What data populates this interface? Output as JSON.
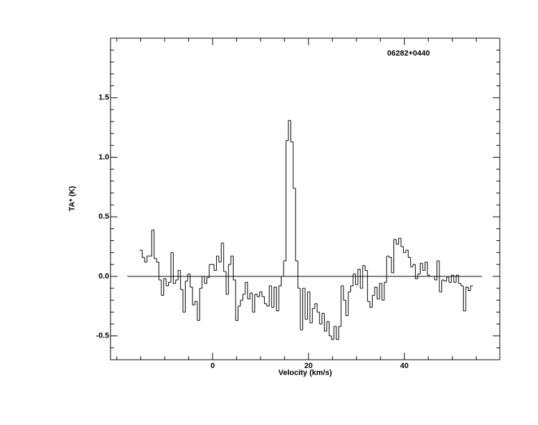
{
  "chart_data": {
    "type": "step",
    "title": "06282+0440",
    "xlabel": "Velocity (km/s)",
    "ylabel": "TA* (K)",
    "x": [
      -14.95,
      -14.45,
      -13.95,
      -13.45,
      -12.95,
      -12.45,
      -11.95,
      -11.45,
      -10.95,
      -10.45,
      -9.95,
      -9.45,
      -8.95,
      -8.45,
      -7.95,
      -7.45,
      -6.95,
      -6.45,
      -5.95,
      -5.45,
      -4.95,
      -4.45,
      -3.95,
      -3.45,
      -2.95,
      -2.45,
      -1.95,
      -1.45,
      -0.95,
      -0.45,
      0.05,
      0.55,
      1.05,
      1.55,
      2.05,
      2.55,
      3.05,
      3.55,
      4.05,
      4.55,
      5.05,
      5.55,
      6.05,
      6.55,
      7.05,
      7.55,
      8.05,
      8.55,
      9.05,
      9.55,
      10.05,
      10.55,
      11.05,
      11.55,
      12.05,
      12.55,
      13.05,
      13.55,
      14.05,
      14.55,
      15.05,
      15.55,
      16.05,
      16.55,
      17.05,
      17.55,
      18.05,
      18.55,
      19.05,
      19.55,
      20.05,
      20.55,
      21.05,
      21.55,
      22.05,
      22.55,
      23.05,
      23.55,
      24.05,
      24.55,
      25.05,
      25.55,
      26.05,
      26.55,
      27.05,
      27.55,
      28.05,
      28.55,
      29.05,
      29.55,
      30.05,
      30.55,
      31.05,
      31.55,
      32.05,
      32.55,
      33.05,
      33.55,
      34.05,
      34.55,
      35.05,
      35.55,
      36.05,
      36.55,
      37.05,
      37.55,
      38.05,
      38.55,
      39.05,
      39.55,
      40.05,
      40.55,
      41.05,
      41.55,
      42.05,
      42.55,
      43.05,
      43.55,
      44.05,
      44.55,
      45.05,
      45.55,
      46.05,
      46.55,
      47.05,
      47.55,
      48.05,
      48.55,
      49.05,
      49.55,
      50.05,
      50.55,
      51.05,
      51.55,
      52.05,
      52.55,
      53.05,
      53.55,
      54.05
    ],
    "values": [
      0.22,
      0.16,
      0.12,
      0.17,
      0.17,
      0.39,
      0.15,
      0.12,
      -0.03,
      -0.16,
      -0.02,
      -0.08,
      -0.05,
      0.2,
      -0.06,
      -0.03,
      0.05,
      -0.11,
      -0.3,
      -0.04,
      0.02,
      -0.09,
      -0.24,
      -0.21,
      -0.37,
      -0.1,
      0.0,
      -0.06,
      -0.01,
      0.1,
      0.1,
      0.05,
      0.17,
      0.12,
      0.28,
      0.04,
      -0.15,
      0.1,
      0.17,
      -0.03,
      -0.37,
      -0.25,
      -0.2,
      -0.15,
      -0.05,
      -0.19,
      -0.14,
      -0.3,
      -0.15,
      -0.17,
      -0.13,
      -0.17,
      -0.23,
      -0.25,
      -0.08,
      -0.26,
      -0.09,
      -0.29,
      -0.08,
      0.0,
      0.13,
      1.14,
      1.31,
      1.13,
      0.74,
      0.13,
      -0.1,
      -0.45,
      -0.1,
      -0.36,
      -0.13,
      -0.39,
      -0.27,
      -0.23,
      -0.3,
      -0.4,
      -0.31,
      -0.46,
      -0.38,
      -0.5,
      -0.53,
      -0.42,
      -0.53,
      -0.42,
      -0.08,
      -0.2,
      -0.33,
      -0.13,
      -0.08,
      0.02,
      -0.07,
      0.06,
      -0.1,
      0.09,
      0.05,
      -0.21,
      -0.26,
      -0.16,
      -0.09,
      -0.19,
      -0.06,
      -0.2,
      -0.05,
      0.17,
      0.16,
      0.03,
      0.31,
      0.27,
      0.32,
      0.25,
      0.2,
      0.22,
      0.16,
      0.08,
      0.1,
      -0.02,
      0.02,
      0.11,
      0.05,
      0.12,
      0.01,
      0.0,
      0.0,
      -0.03,
      0.13,
      -0.13,
      -0.03,
      -0.04,
      -0.01,
      -0.05,
      0.01,
      -0.05,
      0.01,
      -0.06,
      -0.08,
      -0.29,
      -0.09,
      -0.12,
      -0.08
    ],
    "channel_width": 0.5,
    "color": "#000000",
    "zero_line": {
      "x": [
        -17.8,
        56.2
      ],
      "value": 0
    },
    "xlim": [
      -21.3,
      59.9
    ],
    "ylim": [
      -0.7,
      2.0
    ],
    "xticks": [
      0,
      20,
      40
    ],
    "yticks": [
      {
        "value": -0.5,
        "label": "-0.5"
      },
      {
        "value": 0,
        "label": "0.0"
      },
      0.5,
      {
        "value": 1,
        "label": "1.0"
      },
      1.5
    ],
    "xminorticks": [
      -20,
      -15,
      -10,
      -5,
      5,
      10,
      15,
      25,
      30,
      35,
      45,
      50,
      55
    ],
    "yminorticks": [
      -0.6,
      -0.4,
      -0.3,
      -0.2,
      -0.1,
      0.1,
      0.2,
      0.3,
      0.4,
      0.6,
      0.7,
      0.8,
      0.9,
      1.1,
      1.2,
      1.3,
      1.4,
      1.6,
      1.7,
      1.8,
      1.9
    ]
  }
}
